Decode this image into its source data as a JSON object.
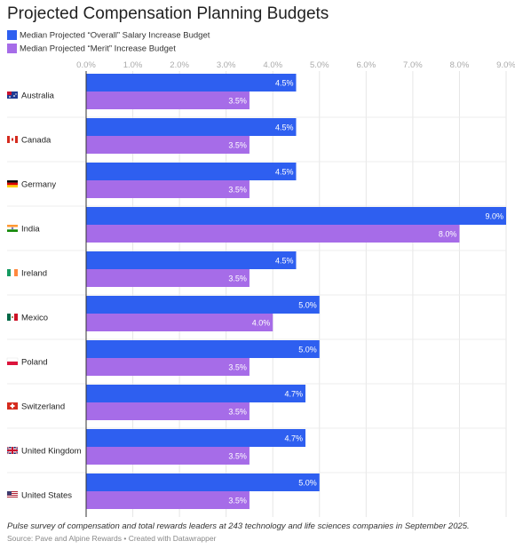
{
  "title": "Projected Compensation Planning Budgets",
  "legend": [
    {
      "label": "Median Projected “Overall” Salary Increase Budget",
      "color": "#2e5ff0"
    },
    {
      "label": "Median Projected “Merit” Increase Budget",
      "color": "#a66ce8"
    }
  ],
  "footer": {
    "note": "Pulse survey of compensation and total rewards leaders at 243 technology and life sciences companies in September 2025.",
    "source": "Source: Pave and Alpine Rewards • Created with Datawrapper"
  },
  "chart_data": {
    "type": "bar",
    "orientation": "horizontal",
    "categories": [
      "Australia",
      "Canada",
      "Germany",
      "India",
      "Ireland",
      "Mexico",
      "Poland",
      "Switzerland",
      "United Kingdom",
      "United States"
    ],
    "series": [
      {
        "name": "Median Projected “Overall” Salary Increase Budget",
        "color": "#2e5ff0",
        "values": [
          4.5,
          4.5,
          4.5,
          9.0,
          4.5,
          5.0,
          5.0,
          4.7,
          4.7,
          5.0
        ],
        "labels": [
          "4.5%",
          "4.5%",
          "4.5%",
          "9.0%",
          "4.5%",
          "5.0%",
          "5.0%",
          "4.7%",
          "4.7%",
          "5.0%"
        ]
      },
      {
        "name": "Median Projected “Merit” Increase Budget",
        "color": "#a66ce8",
        "values": [
          3.5,
          3.5,
          3.5,
          8.0,
          3.5,
          4.0,
          3.5,
          3.5,
          3.5,
          3.5
        ],
        "labels": [
          "3.5%",
          "3.5%",
          "3.5%",
          "8.0%",
          "3.5%",
          "4.0%",
          "3.5%",
          "3.5%",
          "3.5%",
          "3.5%"
        ]
      }
    ],
    "xlim": [
      0,
      9
    ],
    "xticks": [
      "0.0%",
      "1.0%",
      "2.0%",
      "3.0%",
      "4.0%",
      "5.0%",
      "6.0%",
      "7.0%",
      "8.0%",
      "9.0%"
    ],
    "tick_position": "top",
    "grid": true,
    "legend_position": "top-left",
    "flags": [
      "AU",
      "CA",
      "DE",
      "IN",
      "IE",
      "MX",
      "PL",
      "CH",
      "GB",
      "US"
    ]
  }
}
